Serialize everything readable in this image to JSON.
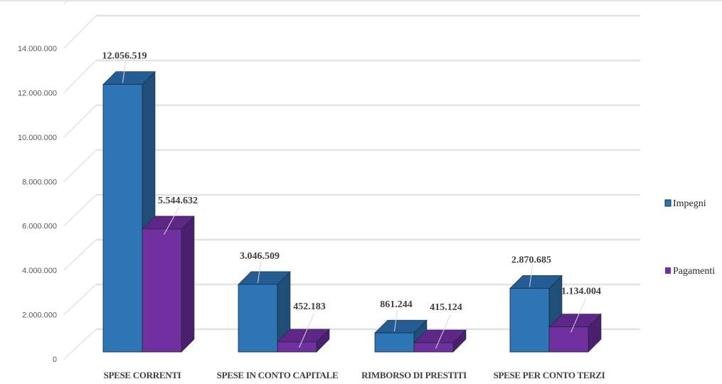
{
  "chart_data": {
    "type": "bar",
    "style": "3d-clustered-column",
    "title": "",
    "xlabel": "",
    "ylabel": "",
    "ylim": [
      0,
      16000000
    ],
    "yticks": [
      0,
      2000000,
      4000000,
      6000000,
      8000000,
      10000000,
      12000000,
      14000000
    ],
    "ytick_labels": [
      "0",
      "2.000.000",
      "4.000.000",
      "6.000.000",
      "8.000.000",
      "10.000.000",
      "12.000.000",
      "14.000.000"
    ],
    "grid": true,
    "legend_position": "right",
    "categories": [
      "SPESE CORRENTI",
      "SPESE IN CONTO CAPITALE",
      "RIMBORSO DI PRESTITI",
      "SPESE PER CONTO TERZI"
    ],
    "series": [
      {
        "name": "Impegni",
        "color": "#2e75b6",
        "top_color": "#245d94",
        "side_color": "#1f4e79",
        "values": [
          12056519,
          3046509,
          861244,
          2870685
        ],
        "labels": [
          "12.056.519",
          "3.046.509",
          "861.244",
          "2.870.685"
        ]
      },
      {
        "name": "Pagamenti",
        "color": "#7030a0",
        "top_color": "#5e2787",
        "side_color": "#4b1f6d",
        "values": [
          5544632,
          452183,
          415124,
          1134004
        ],
        "labels": [
          "5.544.632",
          "452.183",
          "415.124",
          "1.134.004"
        ]
      }
    ]
  }
}
